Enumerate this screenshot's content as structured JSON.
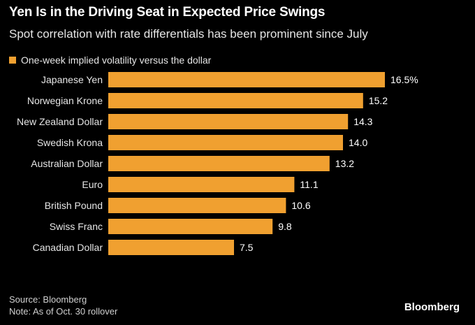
{
  "header": {
    "title": "Yen Is in the Driving Seat in Expected Price Swings",
    "subtitle": "Spot correlation with rate differentials has been prominent since July"
  },
  "legend": {
    "label": "One-week implied volatility versus the dollar"
  },
  "colors": {
    "bar": "#f0a030",
    "background": "#000000",
    "text": "#ffffff"
  },
  "chart_data": {
    "type": "bar",
    "orientation": "horizontal",
    "title": "Yen Is in the Driving Seat in Expected Price Swings",
    "subtitle": "Spot correlation with rate differentials has been prominent since July",
    "categories": [
      "Japanese Yen",
      "Norwegian Krone",
      "New Zealand Dollar",
      "Swedish Krona",
      "Australian Dollar",
      "Euro",
      "British Pound",
      "Swiss Franc",
      "Canadian Dollar"
    ],
    "values": [
      16.5,
      15.2,
      14.3,
      14.0,
      13.2,
      11.1,
      10.6,
      9.8,
      7.5
    ],
    "value_labels": [
      "16.5%",
      "15.2",
      "14.3",
      "14.0",
      "13.2",
      "11.1",
      "10.6",
      "9.8",
      "7.5"
    ],
    "series_name": "One-week implied volatility versus the dollar",
    "xlim": [
      0,
      20
    ],
    "grid": false,
    "legend_position": "top-left"
  },
  "footer": {
    "source": "Source: Bloomberg",
    "note": "Note: As of Oct. 30 rollover",
    "brand": "Bloomberg"
  }
}
